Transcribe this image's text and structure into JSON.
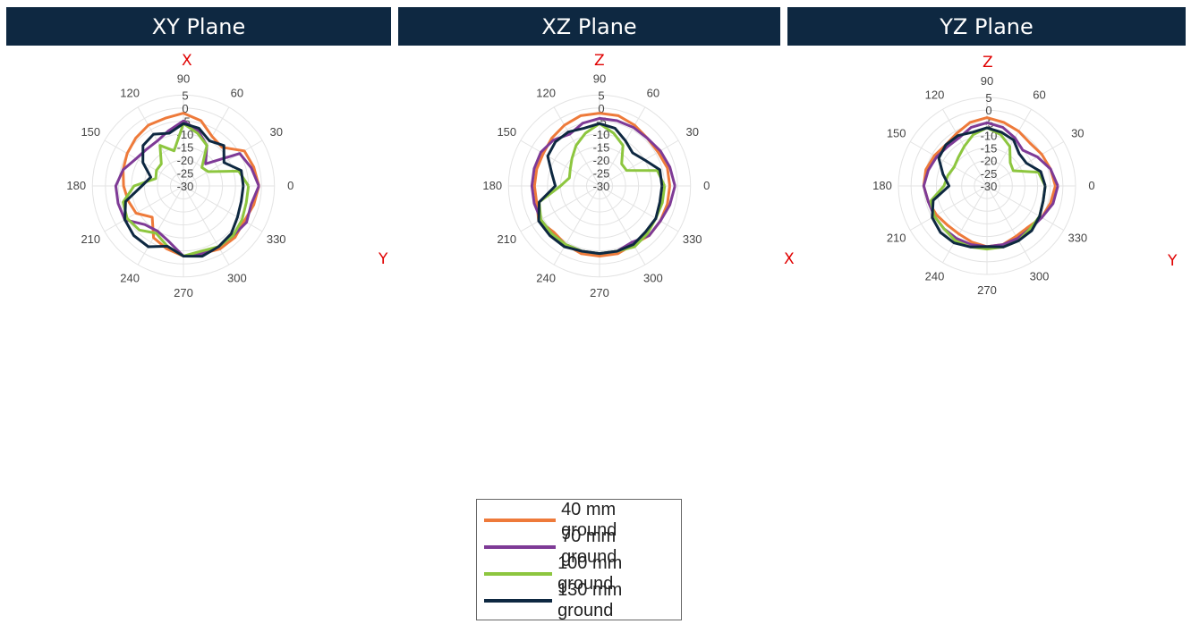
{
  "colors": {
    "banner_bg": "#0e2841",
    "axis_letter": "#e00000",
    "grid": "#e3e3e3",
    "series": [
      "#ee7a3a",
      "#7e3a96",
      "#8dc63f",
      "#0e2841"
    ]
  },
  "legend": [
    {
      "label": "40 mm ground",
      "color": "#ee7a3a"
    },
    {
      "label": "70 mm ground",
      "color": "#7e3a96"
    },
    {
      "label": "100 mm ground",
      "color": "#8dc63f"
    },
    {
      "label": "130 mm ground",
      "color": "#0e2841"
    }
  ],
  "chart_data": [
    {
      "type": "polar-line",
      "title": "XY Plane",
      "top_axis_label": "X",
      "right_axis_label": "Y",
      "angle_unit": "deg",
      "angle_ticks": [
        "0",
        "30",
        "60",
        "90",
        "120",
        "150",
        "180",
        "210",
        "240",
        "270",
        "300",
        "330"
      ],
      "radial_range": [
        -30,
        5
      ],
      "radial_ticks": [
        "5",
        "0",
        "-5",
        "-10",
        "-15",
        "-20",
        "-25",
        "-30"
      ],
      "series": [
        {
          "color": "#ee7a3a",
          "angles": [
            0,
            15,
            30,
            45,
            60,
            75,
            90,
            105,
            120,
            135,
            150,
            165,
            180,
            195,
            210,
            225,
            240,
            255,
            270,
            285,
            300,
            315,
            330,
            345,
            360
          ],
          "values": [
            -1,
            -2,
            -3,
            -9,
            -8,
            -4,
            -2,
            -3,
            -3,
            -4,
            -5,
            -6,
            -7,
            -8,
            -9,
            -13,
            -7,
            -5,
            -3,
            -3,
            -2,
            -2,
            -3,
            -2,
            -1
          ]
        },
        {
          "color": "#7e3a96",
          "angles": [
            0,
            15,
            30,
            45,
            60,
            75,
            90,
            105,
            120,
            135,
            150,
            165,
            180,
            195,
            210,
            225,
            240,
            255,
            270,
            285,
            300,
            315,
            330,
            345,
            360
          ],
          "values": [
            -1,
            -3,
            -5,
            -18,
            -12,
            -8,
            -5,
            -8,
            -10,
            -10,
            -9,
            -6,
            -4,
            -4,
            -4,
            -9,
            -10,
            -8,
            -3,
            -3,
            -3,
            -3,
            -2,
            -3,
            -1
          ]
        },
        {
          "color": "#8dc63f",
          "angles": [
            0,
            15,
            30,
            45,
            60,
            75,
            90,
            105,
            120,
            135,
            150,
            165,
            180,
            195,
            210,
            225,
            240,
            255,
            270,
            285,
            300,
            315,
            330,
            345,
            360
          ],
          "values": [
            -5,
            -8,
            -19,
            -20,
            -12,
            -9,
            -6,
            -16,
            -12,
            -18,
            -18,
            -19,
            -11,
            -6,
            -5,
            -6,
            -9,
            -6,
            -3,
            -4,
            -3,
            -3,
            -4,
            -5,
            -5
          ]
        },
        {
          "color": "#0e2841",
          "angles": [
            0,
            15,
            30,
            45,
            60,
            75,
            90,
            105,
            120,
            135,
            150,
            165,
            180,
            195,
            210,
            225,
            240,
            255,
            270,
            285,
            300,
            315,
            330,
            345,
            360
          ],
          "values": [
            -7,
            -7,
            -12,
            -8,
            -10,
            -7,
            -6,
            -9,
            -7,
            -8,
            -12,
            -17,
            -14,
            -7,
            -4,
            -3,
            -3,
            -6,
            -3,
            -2,
            -3,
            -4,
            -6,
            -7,
            -7
          ]
        }
      ]
    },
    {
      "type": "polar-line",
      "title": "XZ Plane",
      "top_axis_label": "Z",
      "right_axis_label": "X",
      "angle_unit": "deg",
      "angle_ticks": [
        "0",
        "30",
        "60",
        "90",
        "120",
        "150",
        "180",
        "210",
        "240",
        "270",
        "300",
        "330"
      ],
      "radial_range": [
        -30,
        5
      ],
      "radial_ticks": [
        "5",
        "0",
        "-5",
        "-10",
        "-15",
        "-20",
        "-25",
        "-30"
      ],
      "series": [
        {
          "color": "#ee7a3a",
          "angles": [
            0,
            15,
            30,
            45,
            60,
            75,
            90,
            105,
            120,
            135,
            150,
            165,
            180,
            195,
            210,
            225,
            240,
            255,
            270,
            285,
            300,
            315,
            330,
            345,
            360
          ],
          "values": [
            -3,
            -3,
            -4,
            -4,
            -3,
            -2,
            -2,
            -2,
            -3,
            -4,
            -5,
            -5,
            -5,
            -5,
            -3,
            -5,
            -4,
            -3,
            -3,
            -3,
            -4,
            -3,
            -3,
            -3,
            -3
          ]
        },
        {
          "color": "#7e3a96",
          "angles": [
            0,
            15,
            30,
            45,
            60,
            75,
            90,
            105,
            120,
            135,
            150,
            165,
            180,
            195,
            210,
            225,
            240,
            255,
            270,
            285,
            300,
            315,
            330,
            345,
            360
          ],
          "values": [
            -1,
            -2,
            -3,
            -4,
            -4,
            -4,
            -4,
            -5,
            -7,
            -5,
            -4,
            -4,
            -4,
            -4,
            -4,
            -4,
            -4,
            -4,
            -4,
            -4,
            -5,
            -3,
            -3,
            -2,
            -1
          ]
        },
        {
          "color": "#8dc63f",
          "angles": [
            0,
            15,
            30,
            45,
            60,
            75,
            90,
            105,
            120,
            135,
            150,
            165,
            180,
            195,
            210,
            225,
            240,
            255,
            270,
            285,
            300,
            315,
            330,
            345,
            360
          ],
          "values": [
            -5,
            -7,
            -18,
            -18,
            -12,
            -9,
            -6,
            -9,
            -12,
            -15,
            -17,
            -18,
            -15,
            -6,
            -4,
            -4,
            -4,
            -4,
            -4,
            -4,
            -3,
            -4,
            -5,
            -5,
            -5
          ]
        },
        {
          "color": "#0e2841",
          "angles": [
            0,
            15,
            30,
            45,
            60,
            75,
            90,
            105,
            120,
            135,
            150,
            165,
            180,
            195,
            210,
            225,
            240,
            255,
            270,
            285,
            300,
            315,
            330,
            345,
            360
          ],
          "values": [
            -6,
            -6,
            -10,
            -12,
            -10,
            -7,
            -6,
            -7,
            -6,
            -6,
            -7,
            -11,
            -13,
            -6,
            -3,
            -3,
            -3,
            -4,
            -4,
            -4,
            -4,
            -5,
            -5,
            -6,
            -6
          ]
        }
      ]
    },
    {
      "type": "polar-line",
      "title": "YZ Plane",
      "top_axis_label": "Z",
      "right_axis_label": "Y",
      "angle_unit": "deg",
      "angle_ticks": [
        "0",
        "30",
        "60",
        "90",
        "120",
        "150",
        "180",
        "210",
        "240",
        "270",
        "300",
        "330"
      ],
      "radial_range": [
        -30,
        5
      ],
      "radial_ticks": [
        "5",
        "0",
        "-5",
        "-10",
        "-15",
        "-20",
        "-25",
        "-30"
      ],
      "series": [
        {
          "color": "#ee7a3a",
          "angles": [
            0,
            15,
            30,
            45,
            60,
            75,
            90,
            105,
            120,
            135,
            150,
            165,
            180,
            195,
            210,
            225,
            240,
            255,
            270,
            285,
            300,
            315,
            330,
            345,
            360
          ],
          "values": [
            -3,
            -4,
            -5,
            -6,
            -5,
            -4,
            -3,
            -4,
            -6,
            -7,
            -6,
            -5,
            -5,
            -6,
            -7,
            -8,
            -8,
            -7,
            -6,
            -6,
            -7,
            -7,
            -5,
            -4,
            -3
          ]
        },
        {
          "color": "#7e3a96",
          "angles": [
            0,
            15,
            30,
            45,
            60,
            75,
            90,
            105,
            120,
            135,
            150,
            165,
            180,
            195,
            210,
            225,
            240,
            255,
            270,
            285,
            300,
            315,
            330,
            345,
            360
          ],
          "values": [
            -2,
            -4,
            -7,
            -10,
            -8,
            -6,
            -5,
            -6,
            -8,
            -8,
            -7,
            -6,
            -5,
            -6,
            -6,
            -6,
            -6,
            -6,
            -6,
            -6,
            -6,
            -6,
            -5,
            -3,
            -2
          ]
        },
        {
          "color": "#8dc63f",
          "angles": [
            0,
            15,
            30,
            45,
            60,
            75,
            90,
            105,
            120,
            135,
            150,
            165,
            180,
            195,
            210,
            225,
            240,
            255,
            270,
            285,
            300,
            315,
            330,
            345,
            360
          ],
          "values": [
            -7,
            -9,
            -18,
            -17,
            -12,
            -9,
            -7,
            -9,
            -12,
            -14,
            -15,
            -14,
            -13,
            -7,
            -6,
            -6,
            -5,
            -5,
            -5,
            -5,
            -5,
            -6,
            -6,
            -7,
            -7
          ]
        },
        {
          "color": "#0e2841",
          "angles": [
            0,
            15,
            30,
            45,
            60,
            75,
            90,
            105,
            120,
            135,
            150,
            165,
            180,
            195,
            210,
            225,
            240,
            255,
            270,
            285,
            300,
            315,
            330,
            345,
            360
          ],
          "values": [
            -7,
            -8,
            -12,
            -12,
            -9,
            -8,
            -7,
            -8,
            -7,
            -7,
            -8,
            -12,
            -15,
            -8,
            -5,
            -4,
            -4,
            -5,
            -6,
            -5,
            -5,
            -5,
            -6,
            -7,
            -7
          ]
        }
      ]
    }
  ]
}
